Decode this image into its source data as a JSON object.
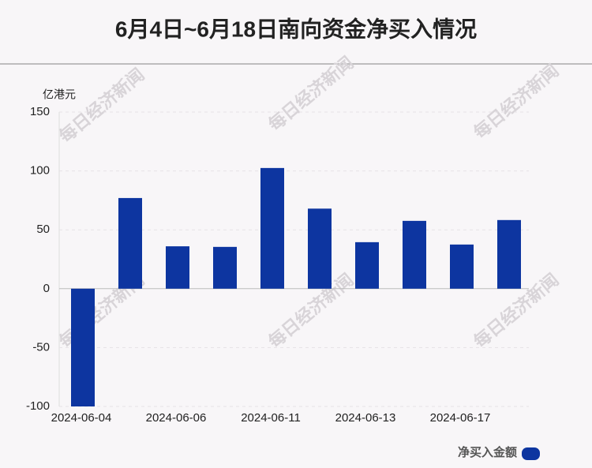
{
  "chart_data": {
    "type": "bar",
    "title": "6月4日~6月18日南向资金净买入情况",
    "y_label": "亿港元",
    "watermark": "每日经济新闻",
    "categories": [
      "2024-06-04",
      null,
      "2024-06-06",
      null,
      "2024-06-11",
      null,
      "2024-06-13",
      null,
      "2024-06-17",
      null
    ],
    "series": [
      {
        "name": "净买入金额",
        "color": "#0d35a0",
        "values": [
          -100,
          77,
          36,
          35.5,
          102.5,
          68,
          39.5,
          57.6,
          37.5,
          58.3
        ]
      }
    ],
    "ylim": [
      -100,
      150
    ],
    "yticks": [
      -100,
      -50,
      0,
      50,
      100,
      150
    ],
    "grid": true,
    "legend": "bottom-right"
  }
}
